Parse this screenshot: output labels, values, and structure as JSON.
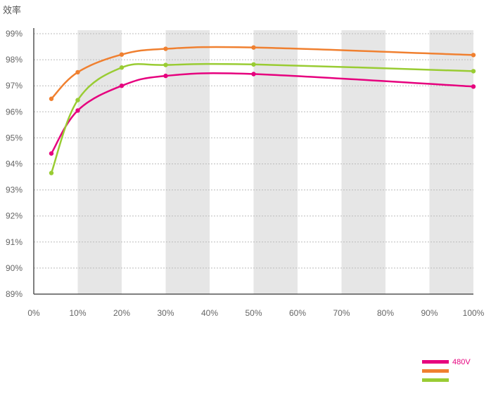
{
  "chart_data": {
    "type": "line",
    "ylabel": "效率",
    "xlabel": "",
    "x_ticks": [
      "0%",
      "10%",
      "20%",
      "30%",
      "40%",
      "50%",
      "60%",
      "70%",
      "80%",
      "90%",
      "100%"
    ],
    "y_ticks": [
      "99%",
      "98%",
      "97%",
      "96%",
      "95%",
      "94%",
      "93%",
      "92%",
      "91%",
      "90%",
      "89%"
    ],
    "xlim": [
      0,
      100
    ],
    "ylim": [
      89,
      99
    ],
    "grid": true,
    "legend_position": "bottom-right",
    "series": [
      {
        "name": "480V",
        "color": "#e6007e",
        "x": [
          4,
          10,
          20,
          30,
          50,
          100
        ],
        "y": [
          94.4,
          96.05,
          97.0,
          97.38,
          97.45,
          96.97
        ]
      },
      {
        "name": "",
        "color": "#f08030",
        "x": [
          4,
          10,
          20,
          30,
          50,
          100
        ],
        "y": [
          96.5,
          97.52,
          98.2,
          98.42,
          98.47,
          98.18
        ]
      },
      {
        "name": "",
        "color": "#99cc33",
        "x": [
          4,
          10,
          20,
          30,
          50,
          100
        ],
        "y": [
          93.65,
          96.45,
          97.7,
          97.8,
          97.82,
          97.56
        ]
      }
    ]
  },
  "colors": {
    "band": "#e6e6e6",
    "gridline": "#bbbbbb",
    "axis": "#555555"
  }
}
